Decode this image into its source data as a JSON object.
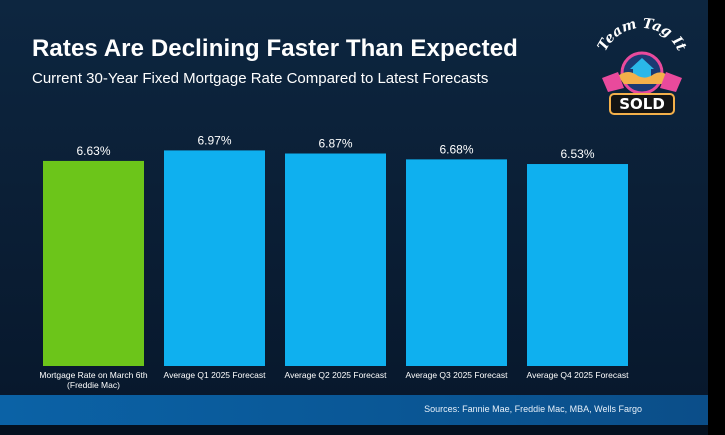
{
  "header": {
    "title": "Rates Are Declining Faster Than Expected",
    "subtitle": "Current 30-Year Fixed Mortgage Rate Compared to Latest Forecasts"
  },
  "logo": {
    "arc_text": "Team Tag It",
    "badge_text": "SOLD"
  },
  "footer": {
    "sources": "Sources: Fannie Mae, Freddie Mac, MBA, Wells Fargo"
  },
  "colors": {
    "highlight_bar": "#6cc51a",
    "forecast_bar": "#0fb0ef"
  },
  "chart_data": {
    "type": "bar",
    "categories": [
      [
        "Mortgage Rate on March 6th",
        "(Freddie Mac)"
      ],
      [
        "Average Q1 2025 Forecast"
      ],
      [
        "Average Q2 2025 Forecast"
      ],
      [
        "Average Q3 2025 Forecast"
      ],
      [
        "Average Q4 2025 Forecast"
      ]
    ],
    "values": [
      6.63,
      6.97,
      6.87,
      6.68,
      6.53
    ],
    "value_labels": [
      "6.63%",
      "6.97%",
      "6.87%",
      "6.68%",
      "6.53%"
    ],
    "highlight_index": 0,
    "ylim": [
      0,
      7.63
    ],
    "grid": false,
    "legend": "none"
  }
}
